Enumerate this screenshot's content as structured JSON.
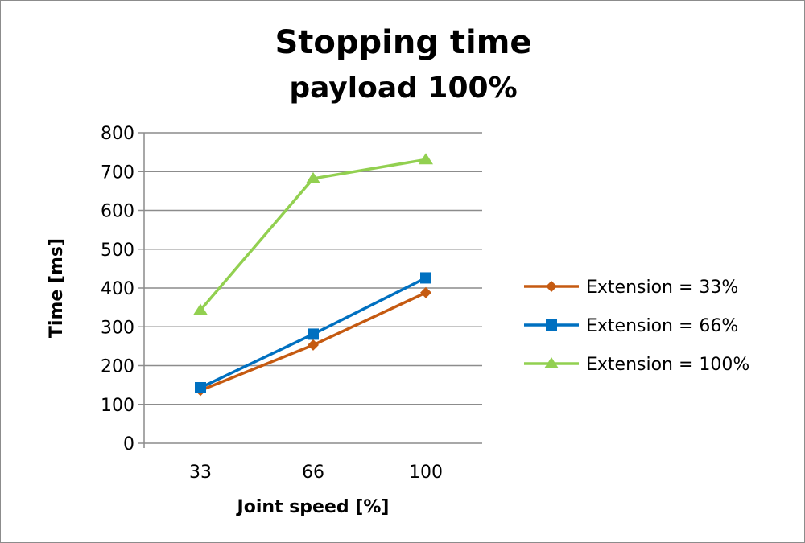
{
  "chart_data": {
    "type": "line",
    "title": "Stopping time",
    "subtitle": "payload 100%",
    "xlabel": "Joint speed [%]",
    "ylabel": "Time [ms]",
    "categories": [
      "33",
      "66",
      "100"
    ],
    "ylim": [
      0,
      800
    ],
    "yticks": [
      0,
      100,
      200,
      300,
      400,
      500,
      600,
      700,
      800
    ],
    "grid": true,
    "legend": "right",
    "series": [
      {
        "name": "Extension = 33%",
        "color": "#C55A11",
        "marker": "diamond",
        "values": [
          136,
          253,
          388
        ]
      },
      {
        "name": "Extension = 66%",
        "color": "#0070C0",
        "marker": "square",
        "values": [
          143,
          281,
          426
        ]
      },
      {
        "name": "Extension = 100%",
        "color": "#92D050",
        "marker": "triangle",
        "values": [
          343,
          682,
          731
        ]
      }
    ]
  }
}
